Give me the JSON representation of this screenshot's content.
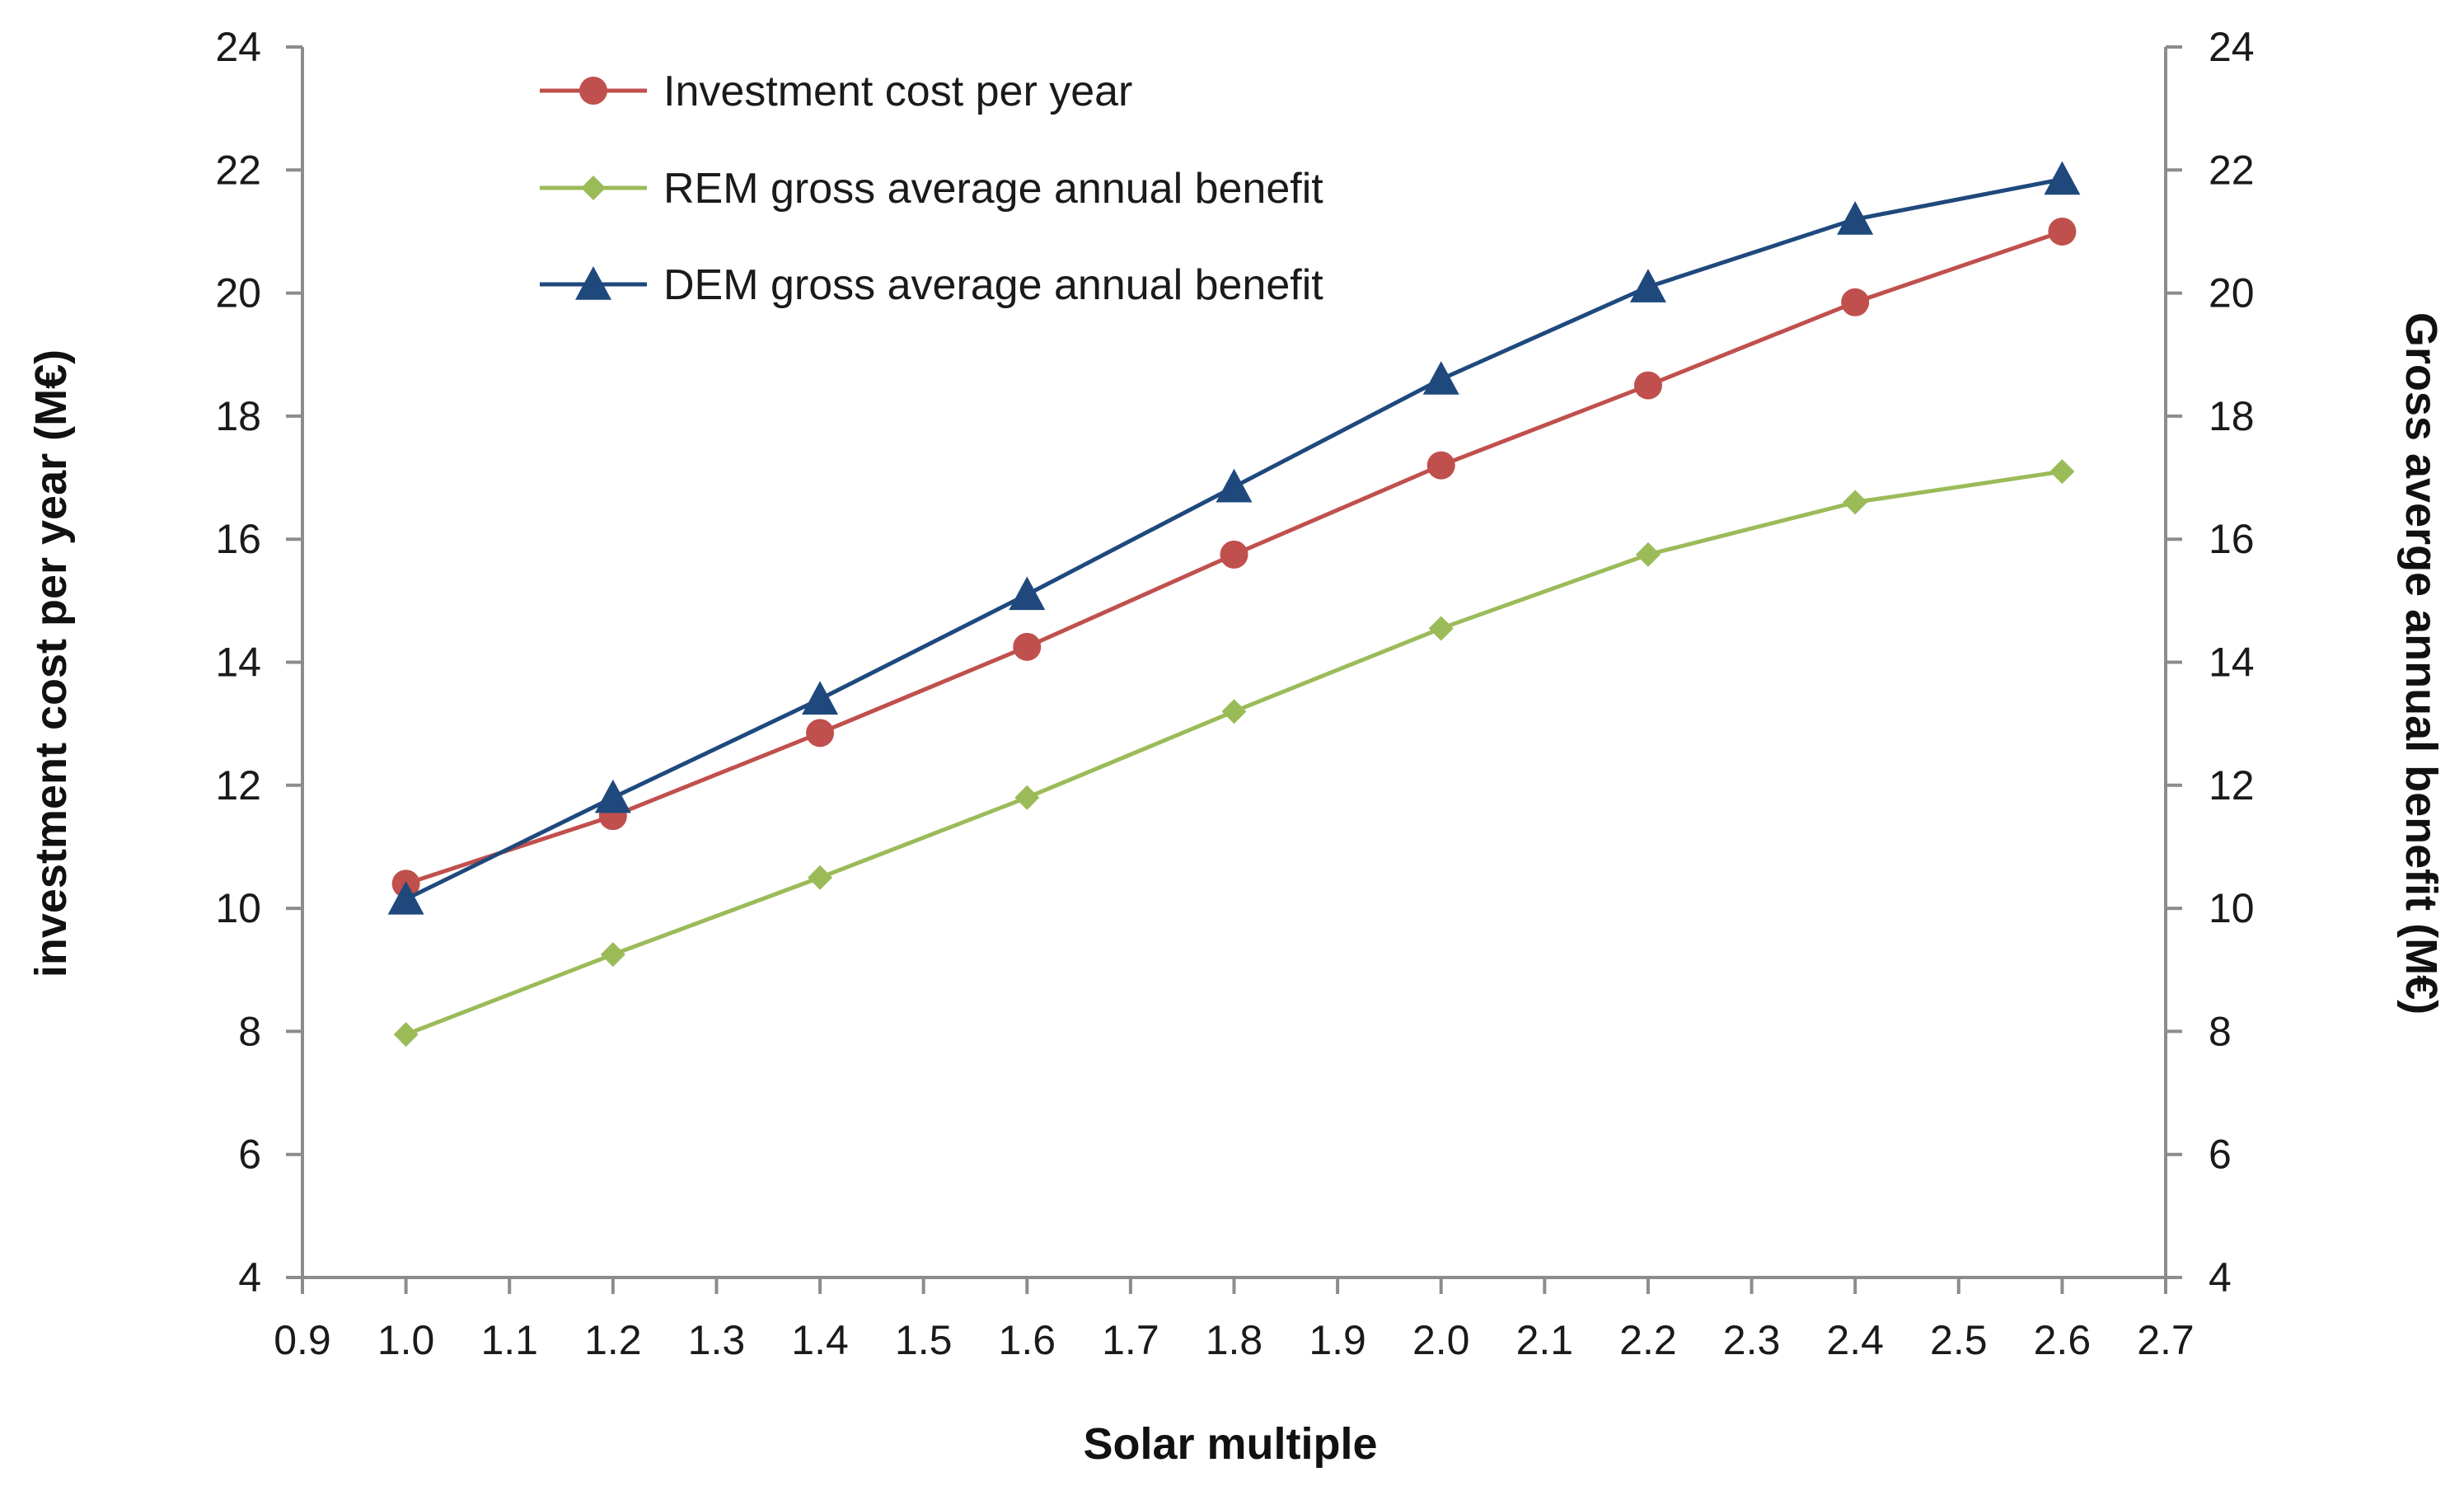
{
  "chart_data": {
    "type": "line",
    "title": "",
    "xlabel": "Solar multiple",
    "ylabel_left": "investment cost per year (M€)",
    "ylabel_right": "Gross averge annual benefit (M€)",
    "xlim": [
      0.9,
      2.7
    ],
    "ylim": [
      4,
      24
    ],
    "x_ticks": [
      "0.9",
      "1.0",
      "1.1",
      "1.2",
      "1.3",
      "1.4",
      "1.5",
      "1.6",
      "1.7",
      "1.8",
      "1.9",
      "2.0",
      "2.1",
      "2.2",
      "2.3",
      "2.4",
      "2.5",
      "2.6",
      "2.7"
    ],
    "y_ticks": [
      "4",
      "6",
      "8",
      "10",
      "12",
      "14",
      "16",
      "18",
      "20",
      "22",
      "24"
    ],
    "x": [
      1.0,
      1.2,
      1.4,
      1.6,
      1.8,
      2.0,
      2.2,
      2.4,
      2.6
    ],
    "legend_position": "top-left",
    "series": [
      {
        "name": "Investment cost per year",
        "color": "#c0504d",
        "marker": "circle",
        "values": [
          10.4,
          11.5,
          12.85,
          14.25,
          15.75,
          17.2,
          18.5,
          19.85,
          21.0
        ]
      },
      {
        "name": "REM gross average annual benefit",
        "color": "#9bbb59",
        "marker": "diamond",
        "values": [
          7.95,
          9.25,
          10.5,
          11.8,
          13.2,
          14.55,
          15.75,
          16.6,
          17.1
        ]
      },
      {
        "name": "DEM gross average annual benefit",
        "color": "#1f497d",
        "marker": "triangle",
        "values": [
          10.15,
          11.8,
          13.4,
          15.1,
          16.85,
          18.6,
          20.1,
          21.2,
          21.85
        ]
      }
    ]
  }
}
